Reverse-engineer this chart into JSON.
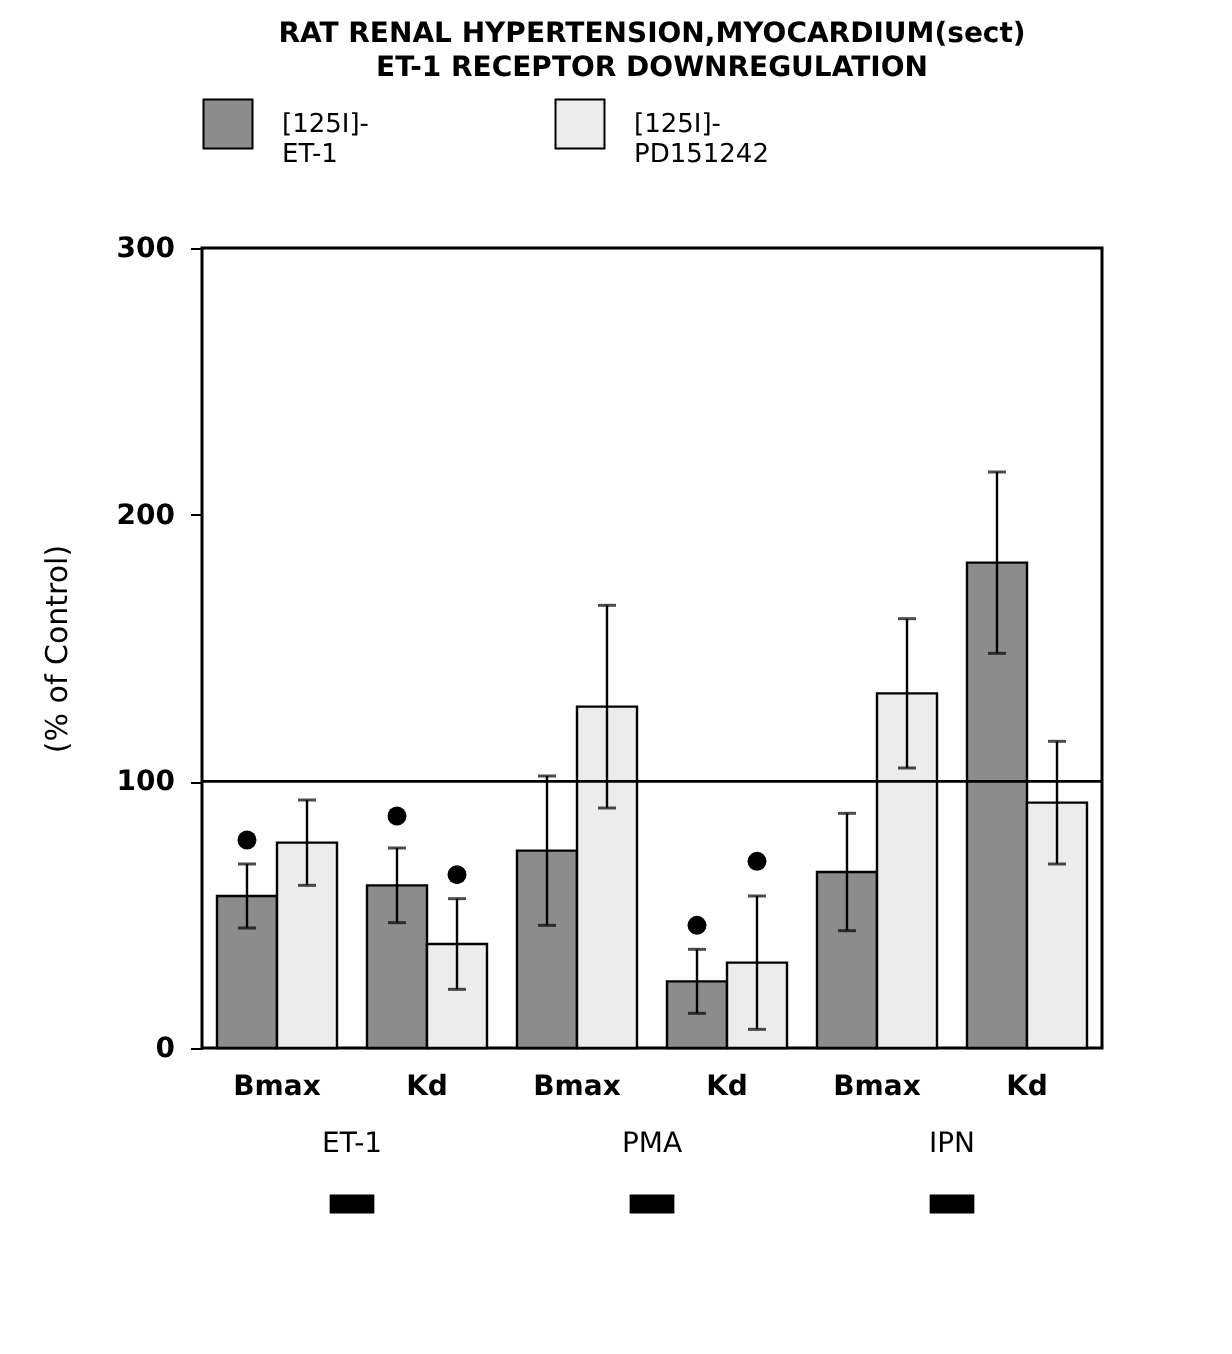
{
  "chart_data": {
    "type": "bar",
    "title": "RAT RENAL HYPERTENSION,MYOCARDIUM(sect)",
    "subtitle": "ET-1 RECEPTOR DOWNREGULATION",
    "ylabel": "(% of Control)",
    "categories": [
      "Bmax",
      "Kd",
      "Bmax",
      "Kd",
      "Bmax",
      "Kd"
    ],
    "series": [
      {
        "name": "[125I]- ET-1",
        "color": "#8c8c8c",
        "values": [
          57,
          61,
          74,
          25,
          66,
          182
        ],
        "errors": [
          12,
          14,
          28,
          12,
          22,
          34
        ]
      },
      {
        "name": "[125I]- PD151242",
        "color": "#ececec",
        "values": [
          77,
          39,
          128,
          32,
          133,
          92
        ],
        "errors": [
          16,
          17,
          38,
          25,
          28,
          23
        ]
      },
      {
        "type": "scatter",
        "color": "#000000",
        "values": [
          78,
          87,
          null,
          46,
          null,
          null
        ]
      },
      {
        "type": "scatter",
        "color": "#000000",
        "values": [
          null,
          65,
          null,
          70,
          null,
          null
        ]
      }
    ],
    "ylim": [
      0,
      300
    ],
    "yticks": [
      0,
      100,
      200,
      300
    ],
    "ref_lines": [
      {
        "axis": "y",
        "value": 100,
        "color": "#000000"
      }
    ],
    "annotations": [
      "ET-1",
      "PMA",
      "IPN"
    ],
    "marker": "circle",
    "legend": "top",
    "grid": false
  }
}
